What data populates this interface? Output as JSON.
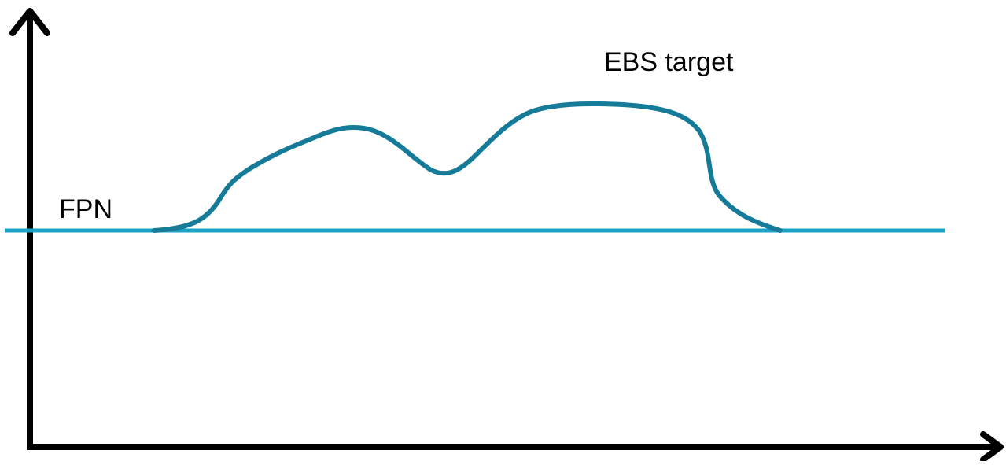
{
  "labels": {
    "fpn": "FPN",
    "ebs_target": "EBS target"
  },
  "colors": {
    "axis": "#000000",
    "baseline": "#1aa3c6",
    "curve": "#157b98"
  }
}
